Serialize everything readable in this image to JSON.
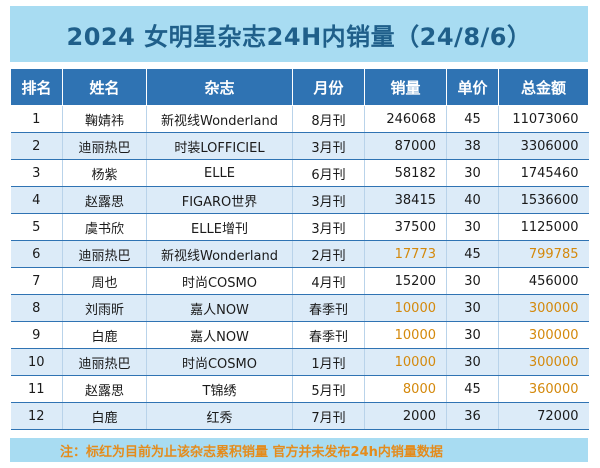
{
  "title": "2024 女明星杂志24H内销量（24/8/6）",
  "headers": [
    "排名",
    "姓名",
    "杂志",
    "月份",
    "销量",
    "单价",
    "总金额"
  ],
  "rows": [
    {
      "rank": "1",
      "name": "鞠婧祎",
      "magazine": "新视线Wonderland",
      "month": "8月刊",
      "sales": "246068",
      "price": "45",
      "total": "11073060",
      "highlight": false
    },
    {
      "rank": "2",
      "name": "迪丽热巴",
      "magazine": "时装LOFFICIEL",
      "month": "3月刊",
      "sales": "87000",
      "price": "38",
      "total": "3306000",
      "highlight": false
    },
    {
      "rank": "3",
      "name": "杨紫",
      "magazine": "ELLE",
      "month": "6月刊",
      "sales": "58182",
      "price": "30",
      "total": "1745460",
      "highlight": false
    },
    {
      "rank": "4",
      "name": "赵露思",
      "magazine": "FIGARO世界",
      "month": "3月刊",
      "sales": "38415",
      "price": "40",
      "total": "1536600",
      "highlight": false
    },
    {
      "rank": "5",
      "name": "虞书欣",
      "magazine": "ELLE增刊",
      "month": "3月刊",
      "sales": "37500",
      "price": "30",
      "total": "1125000",
      "highlight": false
    },
    {
      "rank": "6",
      "name": "迪丽热巴",
      "magazine": "新视线Wonderland",
      "month": "2月刊",
      "sales": "17773",
      "price": "45",
      "total": "799785",
      "highlight": true
    },
    {
      "rank": "7",
      "name": "周也",
      "magazine": "时尚COSMO",
      "month": "4月刊",
      "sales": "15200",
      "price": "30",
      "total": "456000",
      "highlight": false
    },
    {
      "rank": "8",
      "name": "刘雨昕",
      "magazine": "嘉人NOW",
      "month": "春季刊",
      "sales": "10000",
      "price": "30",
      "total": "300000",
      "highlight": true
    },
    {
      "rank": "9",
      "name": "白鹿",
      "magazine": "嘉人NOW",
      "month": "春季刊",
      "sales": "10000",
      "price": "30",
      "total": "300000",
      "highlight": true
    },
    {
      "rank": "10",
      "name": "迪丽热巴",
      "magazine": "时尚COSMO",
      "month": "1月刊",
      "sales": "10000",
      "price": "30",
      "total": "300000",
      "highlight": true
    },
    {
      "rank": "11",
      "name": "赵露思",
      "magazine": "T锦绣",
      "month": "5月刊",
      "sales": "8000",
      "price": "45",
      "total": "360000",
      "highlight": true
    },
    {
      "rank": "12",
      "name": "白鹿",
      "magazine": "红秀",
      "month": "7月刊",
      "sales": "2000",
      "price": "36",
      "total": "72000",
      "highlight": false
    }
  ],
  "note": "注：标红为目前为止该杂志累积销量 官方并未发布24h内销量数据",
  "colors": {
    "header_bg": "#2f73b3",
    "title_bg": "#a8dcf2",
    "highlight_text": "#d4890c"
  }
}
